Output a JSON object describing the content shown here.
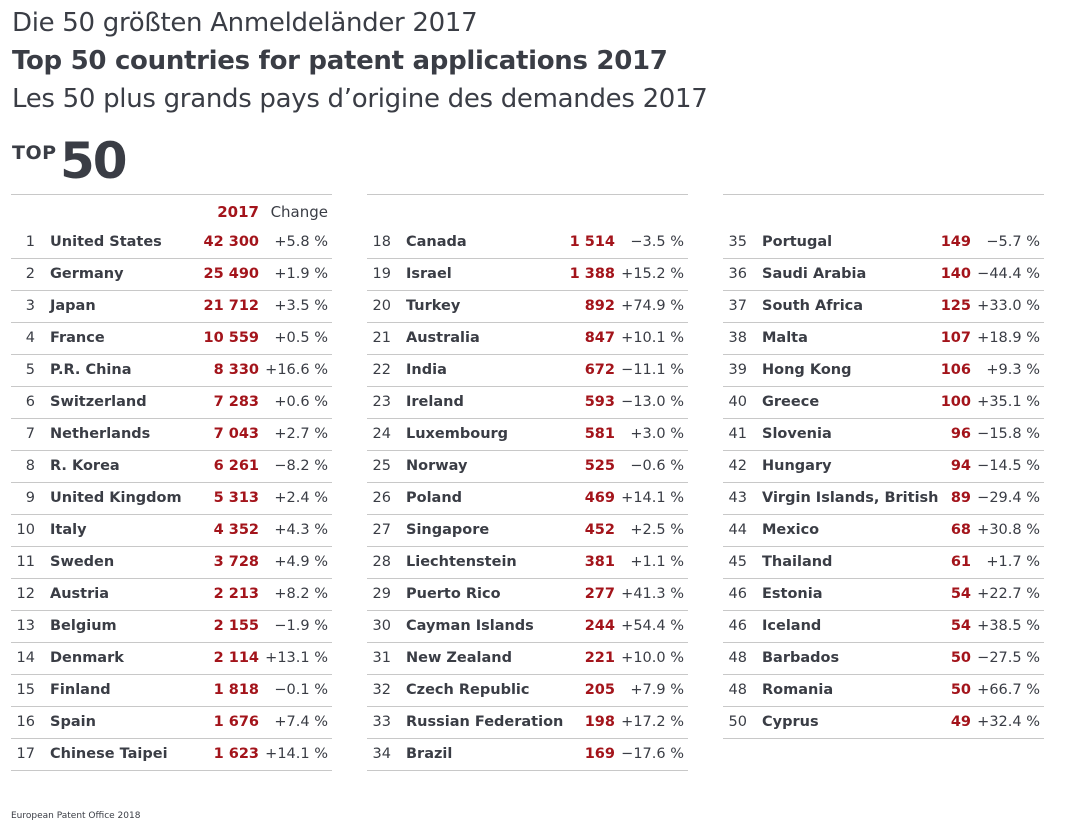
{
  "title": {
    "de": "Die 50 größten Anmeldeländer 2017",
    "en": "Top 50 countries for patent applications 2017",
    "fr": "Les 50 plus grands pays d’origine des demandes 2017"
  },
  "badge": {
    "small": "TOP",
    "big": "50"
  },
  "table_header": {
    "year": "2017",
    "change": "Change"
  },
  "columns": [
    [
      {
        "rank": "1",
        "country": "United States",
        "value": "42 300",
        "change": "+5.8 %"
      },
      {
        "rank": "2",
        "country": "Germany",
        "value": "25 490",
        "change": "+1.9 %"
      },
      {
        "rank": "3",
        "country": "Japan",
        "value": "21 712",
        "change": "+3.5 %"
      },
      {
        "rank": "4",
        "country": "France",
        "value": "10 559",
        "change": "+0.5 %"
      },
      {
        "rank": "5",
        "country": "P.R. China",
        "value": "8 330",
        "change": "+16.6 %"
      },
      {
        "rank": "6",
        "country": "Switzerland",
        "value": "7 283",
        "change": "+0.6 %"
      },
      {
        "rank": "7",
        "country": "Netherlands",
        "value": "7 043",
        "change": "+2.7 %"
      },
      {
        "rank": "8",
        "country": "R. Korea",
        "value": "6 261",
        "change": "−8.2 %"
      },
      {
        "rank": "9",
        "country": "United Kingdom",
        "value": "5 313",
        "change": "+2.4 %"
      },
      {
        "rank": "10",
        "country": "Italy",
        "value": "4 352",
        "change": "+4.3 %"
      },
      {
        "rank": "11",
        "country": "Sweden",
        "value": "3 728",
        "change": "+4.9 %"
      },
      {
        "rank": "12",
        "country": "Austria",
        "value": "2 213",
        "change": "+8.2 %"
      },
      {
        "rank": "13",
        "country": "Belgium",
        "value": "2 155",
        "change": "−1.9 %"
      },
      {
        "rank": "14",
        "country": "Denmark",
        "value": "2 114",
        "change": "+13.1 %"
      },
      {
        "rank": "15",
        "country": "Finland",
        "value": "1 818",
        "change": "−0.1 %"
      },
      {
        "rank": "16",
        "country": "Spain",
        "value": "1 676",
        "change": "+7.4 %"
      },
      {
        "rank": "17",
        "country": "Chinese Taipei",
        "value": "1 623",
        "change": "+14.1 %"
      }
    ],
    [
      {
        "rank": "18",
        "country": "Canada",
        "value": "1 514",
        "change": "−3.5 %"
      },
      {
        "rank": "19",
        "country": "Israel",
        "value": "1 388",
        "change": "+15.2 %"
      },
      {
        "rank": "20",
        "country": "Turkey",
        "value": "892",
        "change": "+74.9 %"
      },
      {
        "rank": "21",
        "country": "Australia",
        "value": "847",
        "change": "+10.1 %"
      },
      {
        "rank": "22",
        "country": "India",
        "value": "672",
        "change": "−11.1 %"
      },
      {
        "rank": "23",
        "country": "Ireland",
        "value": "593",
        "change": "−13.0 %"
      },
      {
        "rank": "24",
        "country": "Luxembourg",
        "value": "581",
        "change": "+3.0 %"
      },
      {
        "rank": "25",
        "country": "Norway",
        "value": "525",
        "change": "−0.6 %"
      },
      {
        "rank": "26",
        "country": "Poland",
        "value": "469",
        "change": "+14.1 %"
      },
      {
        "rank": "27",
        "country": "Singapore",
        "value": "452",
        "change": "+2.5 %"
      },
      {
        "rank": "28",
        "country": "Liechtenstein",
        "value": "381",
        "change": "+1.1 %"
      },
      {
        "rank": "29",
        "country": "Puerto Rico",
        "value": "277",
        "change": "+41.3 %"
      },
      {
        "rank": "30",
        "country": "Cayman Islands",
        "value": "244",
        "change": "+54.4 %"
      },
      {
        "rank": "31",
        "country": "New Zealand",
        "value": "221",
        "change": "+10.0 %"
      },
      {
        "rank": "32",
        "country": "Czech Republic",
        "value": "205",
        "change": "+7.9 %"
      },
      {
        "rank": "33",
        "country": "Russian Federation",
        "value": "198",
        "change": "+17.2 %"
      },
      {
        "rank": "34",
        "country": "Brazil",
        "value": "169",
        "change": "−17.6 %"
      }
    ],
    [
      {
        "rank": "35",
        "country": "Portugal",
        "value": "149",
        "change": "−5.7 %"
      },
      {
        "rank": "36",
        "country": "Saudi Arabia",
        "value": "140",
        "change": "−44.4 %"
      },
      {
        "rank": "37",
        "country": "South Africa",
        "value": "125",
        "change": "+33.0 %"
      },
      {
        "rank": "38",
        "country": "Malta",
        "value": "107",
        "change": "+18.9 %"
      },
      {
        "rank": "39",
        "country": "Hong Kong",
        "value": "106",
        "change": "+9.3 %"
      },
      {
        "rank": "40",
        "country": "Greece",
        "value": "100",
        "change": "+35.1 %"
      },
      {
        "rank": "41",
        "country": "Slovenia",
        "value": "96",
        "change": "−15.8 %"
      },
      {
        "rank": "42",
        "country": "Hungary",
        "value": "94",
        "change": "−14.5 %"
      },
      {
        "rank": "43",
        "country": "Virgin Islands, British",
        "value": "89",
        "change": "−29.4 %"
      },
      {
        "rank": "44",
        "country": "Mexico",
        "value": "68",
        "change": "+30.8 %"
      },
      {
        "rank": "45",
        "country": "Thailand",
        "value": "61",
        "change": "+1.7 %"
      },
      {
        "rank": "46",
        "country": "Estonia",
        "value": "54",
        "change": "+22.7 %"
      },
      {
        "rank": "46",
        "country": "Iceland",
        "value": "54",
        "change": "+38.5 %"
      },
      {
        "rank": "48",
        "country": "Barbados",
        "value": "50",
        "change": "−27.5 %"
      },
      {
        "rank": "48",
        "country": "Romania",
        "value": "50",
        "change": "+66.7 %"
      },
      {
        "rank": "50",
        "country": "Cyprus",
        "value": "49",
        "change": "+32.4 %"
      }
    ]
  ],
  "source": "European Patent Office 2018",
  "colors": {
    "accent": "#a3141b",
    "text": "#3a3d45",
    "rule": "#c8c8c8"
  }
}
